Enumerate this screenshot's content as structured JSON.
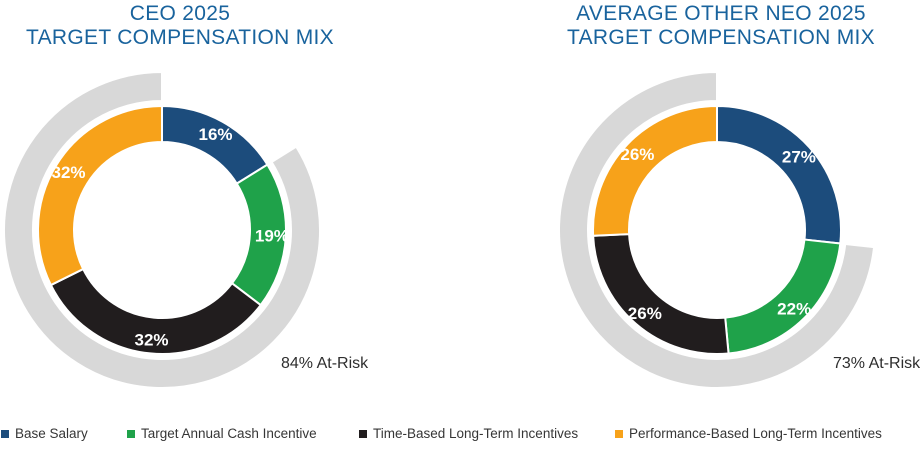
{
  "charts": [
    {
      "title_line1": "CEO 2025",
      "title_line2": "TARGET COMPENSATION MIX",
      "at_risk_label": "84% At-Risk"
    },
    {
      "title_line1": "AVERAGE OTHER NEO 2025",
      "title_line2": "TARGET COMPENSATION MIX",
      "at_risk_label": "73% At-Risk"
    }
  ],
  "legend": {
    "items": [
      {
        "label": "Base Salary",
        "color": "#1C4C7C"
      },
      {
        "label": "Target Annual Cash Incentive",
        "color": "#1FA24A"
      },
      {
        "label": "Time-Based Long-Term Incentives",
        "color": "#211D1E"
      },
      {
        "label": "Performance-Based Long-Term Incentives",
        "color": "#F7A21A"
      }
    ]
  },
  "colors": {
    "title_blue": "#19639D",
    "at_risk_ring_gray": "#D8D8D8",
    "annotation_text": "#2E2E2E",
    "legend_text": "#363636"
  },
  "chart_data": [
    {
      "type": "pie",
      "subtype": "donut",
      "title": "CEO 2025 TARGET COMPENSATION MIX",
      "categories": [
        "Base Salary",
        "Target Annual Cash Incentive",
        "Time-Based Long-Term Incentives",
        "Performance-Based Long-Term Incentives"
      ],
      "values": [
        16,
        19,
        32,
        32
      ],
      "labels": [
        "16%",
        "19%",
        "32%",
        "32%"
      ],
      "colors": [
        "#1C4C7C",
        "#1FA24A",
        "#211D1E",
        "#F7A21A"
      ],
      "start_angle_deg": 0,
      "direction": "clockwise",
      "annotation": "84% At-Risk",
      "at_risk_ring": {
        "percent": 84,
        "covers_category_indices": [
          1,
          2,
          3
        ],
        "color": "#D8D8D8"
      },
      "legend_position": "bottom"
    },
    {
      "type": "pie",
      "subtype": "donut",
      "title": "AVERAGE OTHER NEO 2025 TARGET COMPENSATION MIX",
      "categories": [
        "Base Salary",
        "Target Annual Cash Incentive",
        "Time-Based Long-Term Incentives",
        "Performance-Based Long-Term Incentives"
      ],
      "values": [
        27,
        22,
        26,
        26
      ],
      "labels": [
        "27%",
        "22%",
        "26%",
        "26%"
      ],
      "colors": [
        "#1C4C7C",
        "#1FA24A",
        "#211D1E",
        "#F7A21A"
      ],
      "start_angle_deg": 0,
      "direction": "clockwise",
      "annotation": "73% At-Risk",
      "at_risk_ring": {
        "percent": 73,
        "covers_category_indices": [
          1,
          2,
          3
        ],
        "color": "#D8D8D8"
      },
      "legend_position": "bottom"
    }
  ]
}
